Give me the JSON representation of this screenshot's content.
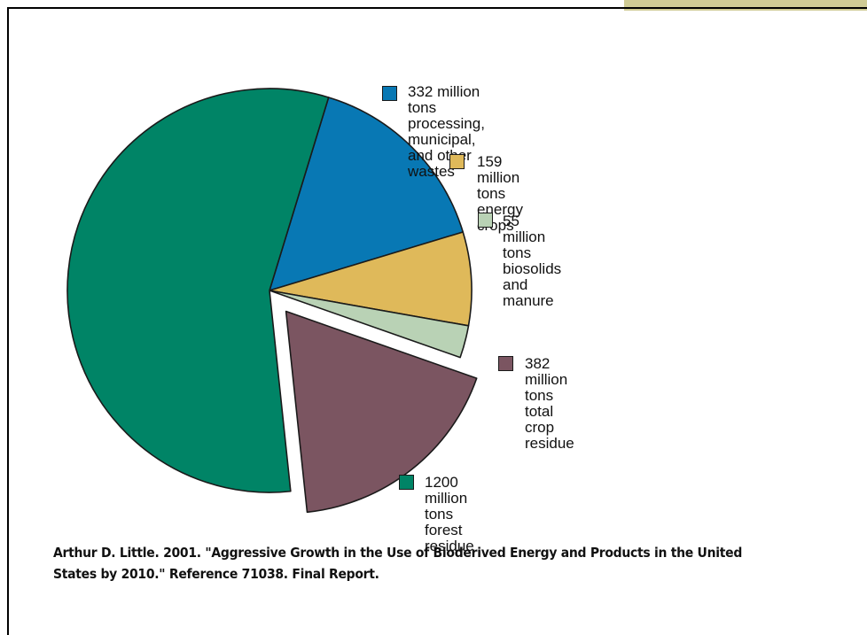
{
  "chart_data": {
    "type": "pie",
    "exploded_slice": "382 million tons total crop residue",
    "slices": [
      {
        "label": "332 million tons processing,\nmunicipal, and other wastes",
        "value": 332,
        "color": "#0878b4"
      },
      {
        "label": "159 million tons energy crops",
        "value": 159,
        "color": "#dfb95a"
      },
      {
        "label": "55 million tons biosolids and manure",
        "value": 55,
        "color": "#b9d2b5"
      },
      {
        "label": "382 million tons total crop residue",
        "value": 382,
        "color": "#7b5561"
      },
      {
        "label": "1200 million tons forest residue",
        "value": 1200,
        "color": "#008466"
      }
    ]
  },
  "citation": "Arthur D. Little. 2001. \"Aggressive Growth in the Use of Bioderived Energy and Products in the United States by 2010.\" Reference 71038. Final Report.",
  "colors": {
    "corner_block": "#cfcb94",
    "frame": "#000000"
  }
}
